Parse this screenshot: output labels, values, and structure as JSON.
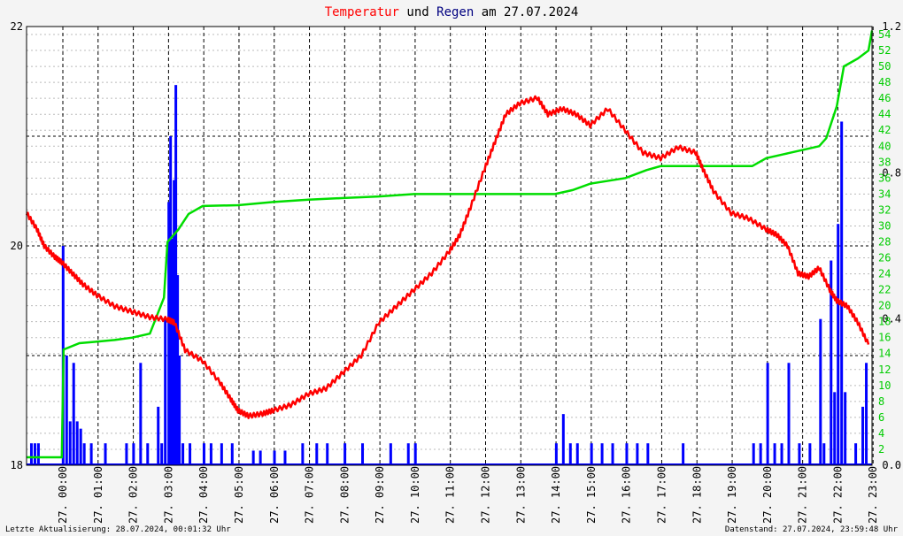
{
  "title": {
    "part1": "Temperatur",
    "part2": " und ",
    "part3": "Regen",
    "part4": " am 27.07.2024",
    "color1": "#ff0000",
    "color3": "#000080",
    "color_other": "#000000"
  },
  "footer": {
    "left": "Letzte Aktualisierung: 28.07.2024, 00:01:32 Uhr",
    "right": "Datenstand: 27.07.2024, 23:59:48 Uhr"
  },
  "chart_data": {
    "type": "line",
    "x_label_prefix": "27.",
    "x_ticks": [
      "00:00",
      "01:00",
      "02:00",
      "03:00",
      "04:00",
      "05:00",
      "06:00",
      "07:00",
      "08:00",
      "09:00",
      "10:00",
      "11:00",
      "12:00",
      "13:00",
      "14:00",
      "15:00",
      "16:00",
      "17:00",
      "18:00",
      "19:00",
      "20:00",
      "21:00",
      "22:00",
      "23:00"
    ],
    "xlim_hours": [
      0,
      24
    ],
    "y_left": {
      "lim": [
        18,
        22
      ],
      "ticks": [
        18,
        20,
        22
      ]
    },
    "y_right_rain_rate": {
      "lim": [
        0,
        1.2
      ],
      "ticks": [
        "0.0",
        "0.4",
        "0.8",
        "1.2"
      ],
      "color": "#000000"
    },
    "y_right_rain_sum": {
      "lim": [
        0,
        55
      ],
      "ticks": [
        2,
        4,
        6,
        8,
        10,
        12,
        14,
        16,
        18,
        20,
        22,
        24,
        26,
        28,
        30,
        32,
        34,
        36,
        38,
        40,
        42,
        44,
        46,
        48,
        50,
        52,
        54
      ],
      "color": "#00cc00"
    },
    "grid": true,
    "series": [
      {
        "name": "Temperatur",
        "color": "#ff0000",
        "axis": "left",
        "points": [
          [
            0.0,
            20.3
          ],
          [
            0.3,
            20.15
          ],
          [
            0.5,
            20.0
          ],
          [
            0.8,
            19.9
          ],
          [
            1.0,
            19.85
          ],
          [
            1.3,
            19.75
          ],
          [
            1.6,
            19.65
          ],
          [
            2.0,
            19.55
          ],
          [
            2.5,
            19.45
          ],
          [
            3.0,
            19.4
          ],
          [
            3.5,
            19.35
          ],
          [
            4.0,
            19.33
          ],
          [
            4.2,
            19.3
          ],
          [
            4.5,
            19.05
          ],
          [
            5.0,
            18.95
          ],
          [
            5.5,
            18.75
          ],
          [
            5.8,
            18.6
          ],
          [
            6.0,
            18.5
          ],
          [
            6.3,
            18.45
          ],
          [
            6.7,
            18.47
          ],
          [
            7.0,
            18.5
          ],
          [
            7.5,
            18.55
          ],
          [
            8.0,
            18.65
          ],
          [
            8.5,
            18.7
          ],
          [
            9.0,
            18.85
          ],
          [
            9.5,
            19.0
          ],
          [
            10.0,
            19.3
          ],
          [
            10.5,
            19.45
          ],
          [
            11.0,
            19.6
          ],
          [
            11.5,
            19.75
          ],
          [
            12.0,
            19.95
          ],
          [
            12.3,
            20.1
          ],
          [
            12.6,
            20.35
          ],
          [
            13.0,
            20.7
          ],
          [
            13.3,
            20.95
          ],
          [
            13.6,
            21.2
          ],
          [
            14.0,
            21.3
          ],
          [
            14.5,
            21.35
          ],
          [
            14.8,
            21.2
          ],
          [
            15.2,
            21.25
          ],
          [
            15.6,
            21.2
          ],
          [
            16.0,
            21.1
          ],
          [
            16.5,
            21.25
          ],
          [
            17.0,
            21.05
          ],
          [
            17.5,
            20.85
          ],
          [
            18.0,
            20.8
          ],
          [
            18.5,
            20.9
          ],
          [
            19.0,
            20.85
          ],
          [
            19.2,
            20.7
          ],
          [
            19.5,
            20.5
          ],
          [
            20.0,
            20.3
          ],
          [
            20.5,
            20.25
          ],
          [
            21.0,
            20.15
          ],
          [
            21.3,
            20.1
          ],
          [
            21.6,
            20.0
          ],
          [
            21.9,
            19.75
          ],
          [
            22.2,
            19.72
          ],
          [
            22.5,
            19.8
          ],
          [
            22.8,
            19.6
          ],
          [
            23.0,
            19.5
          ],
          [
            23.3,
            19.45
          ],
          [
            23.6,
            19.3
          ],
          [
            23.9,
            19.1
          ]
        ]
      },
      {
        "name": "Regen",
        "color": "#0000ff",
        "axis": "rain_rate",
        "bars": [
          [
            0.1,
            0.06
          ],
          [
            0.2,
            0.06
          ],
          [
            0.3,
            0.06
          ],
          [
            1.0,
            0.6
          ],
          [
            1.1,
            0.3
          ],
          [
            1.2,
            0.12
          ],
          [
            1.3,
            0.28
          ],
          [
            1.4,
            0.12
          ],
          [
            1.5,
            0.1
          ],
          [
            1.6,
            0.06
          ],
          [
            1.8,
            0.06
          ],
          [
            2.2,
            0.06
          ],
          [
            2.8,
            0.06
          ],
          [
            3.0,
            0.06
          ],
          [
            3.2,
            0.28
          ],
          [
            3.4,
            0.06
          ],
          [
            3.7,
            0.16
          ],
          [
            3.8,
            0.06
          ],
          [
            3.9,
            0.4
          ],
          [
            4.0,
            0.72
          ],
          [
            4.05,
            0.9
          ],
          [
            4.1,
            0.62
          ],
          [
            4.15,
            0.78
          ],
          [
            4.2,
            1.04
          ],
          [
            4.25,
            0.52
          ],
          [
            4.3,
            0.3
          ],
          [
            4.4,
            0.06
          ],
          [
            4.6,
            0.06
          ],
          [
            5.0,
            0.06
          ],
          [
            5.2,
            0.06
          ],
          [
            5.5,
            0.06
          ],
          [
            5.8,
            0.06
          ],
          [
            6.4,
            0.04
          ],
          [
            6.6,
            0.04
          ],
          [
            7.0,
            0.04
          ],
          [
            7.3,
            0.04
          ],
          [
            7.8,
            0.06
          ],
          [
            8.2,
            0.06
          ],
          [
            8.5,
            0.06
          ],
          [
            9.0,
            0.06
          ],
          [
            9.5,
            0.06
          ],
          [
            10.3,
            0.06
          ],
          [
            10.8,
            0.06
          ],
          [
            11.0,
            0.06
          ],
          [
            15.0,
            0.06
          ],
          [
            15.2,
            0.14
          ],
          [
            15.4,
            0.06
          ],
          [
            15.6,
            0.06
          ],
          [
            16.0,
            0.06
          ],
          [
            16.3,
            0.06
          ],
          [
            16.6,
            0.06
          ],
          [
            17.0,
            0.06
          ],
          [
            17.3,
            0.06
          ],
          [
            17.6,
            0.06
          ],
          [
            18.6,
            0.06
          ],
          [
            20.6,
            0.06
          ],
          [
            20.8,
            0.06
          ],
          [
            21.0,
            0.28
          ],
          [
            21.2,
            0.06
          ],
          [
            21.4,
            0.06
          ],
          [
            21.6,
            0.28
          ],
          [
            21.9,
            0.06
          ],
          [
            22.2,
            0.06
          ],
          [
            22.5,
            0.4
          ],
          [
            22.6,
            0.06
          ],
          [
            22.8,
            0.56
          ],
          [
            22.9,
            0.2
          ],
          [
            23.0,
            0.66
          ],
          [
            23.1,
            0.94
          ],
          [
            23.2,
            0.2
          ],
          [
            23.5,
            0.06
          ],
          [
            23.7,
            0.16
          ],
          [
            23.8,
            0.28
          ]
        ]
      },
      {
        "name": "Regensumme",
        "color": "#00dd00",
        "axis": "rain_sum",
        "points": [
          [
            0.0,
            1.0
          ],
          [
            1.0,
            1.0
          ],
          [
            1.05,
            14.5
          ],
          [
            1.5,
            15.3
          ],
          [
            2.0,
            15.5
          ],
          [
            2.5,
            15.7
          ],
          [
            3.0,
            16.0
          ],
          [
            3.5,
            16.5
          ],
          [
            3.9,
            21.0
          ],
          [
            4.0,
            28.0
          ],
          [
            4.3,
            29.5
          ],
          [
            4.6,
            31.5
          ],
          [
            5.0,
            32.5
          ],
          [
            6.0,
            32.6
          ],
          [
            7.0,
            33.0
          ],
          [
            8.0,
            33.3
          ],
          [
            9.0,
            33.5
          ],
          [
            10.0,
            33.7
          ],
          [
            11.0,
            34.0
          ],
          [
            12.0,
            34.0
          ],
          [
            13.0,
            34.0
          ],
          [
            14.0,
            34.0
          ],
          [
            15.0,
            34.0
          ],
          [
            15.5,
            34.5
          ],
          [
            16.0,
            35.3
          ],
          [
            17.0,
            36.0
          ],
          [
            17.6,
            37.0
          ],
          [
            18.0,
            37.5
          ],
          [
            19.0,
            37.5
          ],
          [
            20.0,
            37.5
          ],
          [
            20.6,
            37.5
          ],
          [
            21.0,
            38.5
          ],
          [
            21.5,
            39.0
          ],
          [
            22.0,
            39.5
          ],
          [
            22.5,
            40.0
          ],
          [
            22.7,
            41.0
          ],
          [
            23.0,
            45.0
          ],
          [
            23.2,
            50.0
          ],
          [
            23.6,
            51.0
          ],
          [
            23.9,
            52.0
          ],
          [
            24.0,
            54.5
          ]
        ]
      }
    ]
  }
}
